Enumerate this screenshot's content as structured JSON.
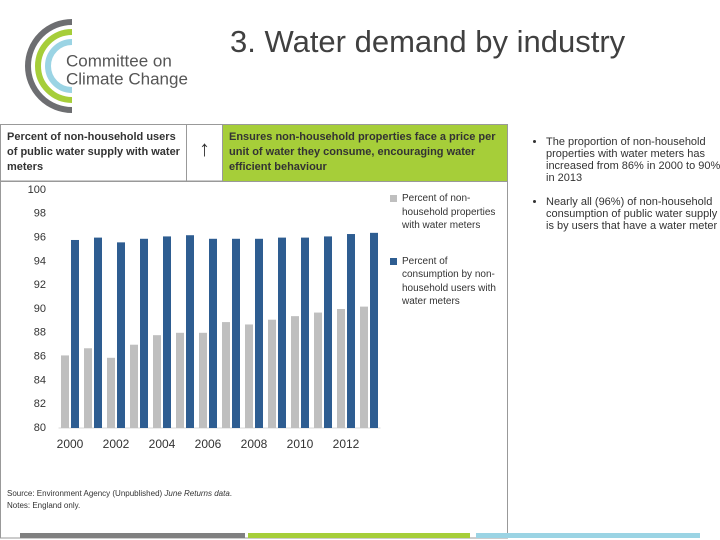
{
  "logo": {
    "line1": "Committee on",
    "line2": "Climate Change"
  },
  "header": {
    "title": "3. Water demand by industry"
  },
  "panel": {
    "left_label": "Percent of non-household users of public water supply with water meters",
    "arrow": "↑",
    "right_label": "Ensures non-household properties face a price per unit of water they consume, encouraging water efficient behaviour"
  },
  "chart_data": {
    "type": "bar",
    "categories": [
      "2000",
      null,
      "2002",
      null,
      "2004",
      null,
      "2006",
      null,
      "2008",
      null,
      "2010",
      null,
      "2012",
      null
    ],
    "series": [
      {
        "name": "Percent of non-household properties with water meters",
        "color": "#bfbfbf",
        "values": [
          86.1,
          86.7,
          85.9,
          87.0,
          87.8,
          88.0,
          88.0,
          88.9,
          88.7,
          89.1,
          89.4,
          89.7,
          90.0,
          90.2
        ]
      },
      {
        "name": "Percent of consumption by non-household users with water meters",
        "color": "#2e5d91",
        "values": [
          95.8,
          96.0,
          95.6,
          95.9,
          96.1,
          96.2,
          95.9,
          95.9,
          95.9,
          96.0,
          96.0,
          96.1,
          96.3,
          96.4
        ]
      }
    ],
    "ylim": [
      80,
      100
    ],
    "yticks": [
      80,
      82,
      84,
      86,
      88,
      90,
      92,
      94,
      96,
      98,
      100
    ],
    "legend": "right"
  },
  "source": {
    "prefix": "Source: Environment Agency (Unpublished) ",
    "italic": "June Returns data",
    "suffix": "."
  },
  "notes": "Notes: England only.",
  "bullets": [
    "The proportion of non-household properties with water meters has increased from 86% in 2000 to 90% in 2013",
    "Nearly all (96%) of non-household consumption of public water supply is by users that have a water meter"
  ]
}
